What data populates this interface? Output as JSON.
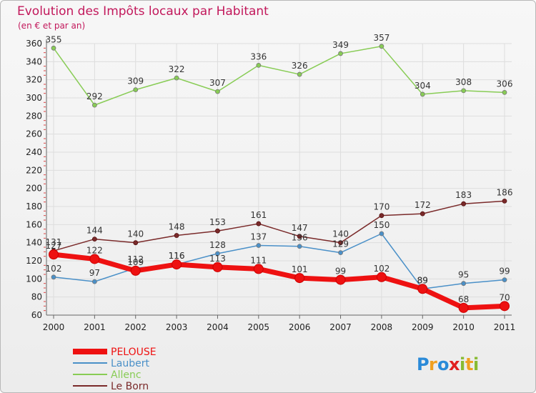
{
  "chart_data": {
    "type": "line",
    "title": "Evolution des Impôts locaux par Habitant",
    "subtitle": "(en € et par an)",
    "x": [
      "2000",
      "2001",
      "2002",
      "2003",
      "2004",
      "2005",
      "2006",
      "2007",
      "2008",
      "2009",
      "2010",
      "2011"
    ],
    "ylim": [
      60,
      360
    ],
    "yticks": [
      60,
      80,
      100,
      120,
      140,
      160,
      180,
      200,
      220,
      240,
      260,
      280,
      300,
      320,
      340,
      360
    ],
    "grid": true,
    "legend_position": "bottom-left",
    "series": [
      {
        "name": "PELOUSE",
        "color": "#ee1111",
        "values": [
          127,
          122,
          109,
          116,
          113,
          111,
          101,
          99,
          102,
          89,
          68,
          70
        ]
      },
      {
        "name": "Laubert",
        "color": "#4a90c8",
        "values": [
          102,
          97,
          112,
          116,
          128,
          137,
          136,
          129,
          150,
          89,
          95,
          99
        ]
      },
      {
        "name": "Allenc",
        "color": "#88cc55",
        "values": [
          355,
          292,
          309,
          322,
          307,
          336,
          326,
          349,
          357,
          304,
          308,
          306
        ]
      },
      {
        "name": "Le Born",
        "color": "#7a2a2a",
        "values": [
          131,
          144,
          140,
          148,
          153,
          161,
          147,
          140,
          170,
          172,
          183,
          186
        ]
      }
    ]
  },
  "brand": {
    "letters": [
      "P",
      "r",
      "o",
      "x",
      "i",
      "t",
      "i"
    ],
    "colors": [
      "#2a8ad8",
      "#f0a020",
      "#2a8ad8",
      "#e02020",
      "#88bb33",
      "#f0a020",
      "#88bb33"
    ]
  }
}
